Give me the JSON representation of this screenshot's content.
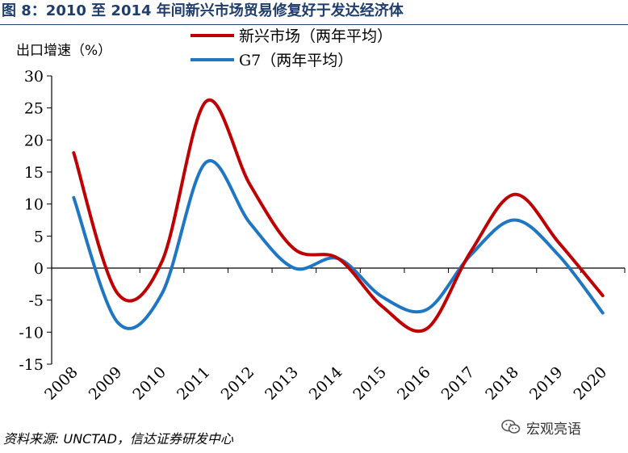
{
  "title": "图 8：2010 至 2014 年间新兴市场贸易修复好于发达经济体",
  "unit_label": "出口增速（%）",
  "source": "资料来源: UNCTAD，信达证券研发中心",
  "watermark": {
    "text": "宏观亮语",
    "icon": "wechat-icon"
  },
  "chart_data": {
    "type": "line",
    "categories": [
      "2008",
      "2009",
      "2010",
      "2011",
      "2012",
      "2013",
      "2014",
      "2015",
      "2016",
      "2017",
      "2018",
      "2019",
      "2020"
    ],
    "ylim": [
      -15,
      30
    ],
    "yticks": [
      30,
      25,
      20,
      15,
      10,
      5,
      0,
      -5,
      -10,
      -15
    ],
    "legend_position": "top-center",
    "grid": false,
    "smooth": true,
    "series": [
      {
        "name": "新兴市场（两年平均）",
        "color": "#c00000",
        "values": [
          18,
          -4,
          1,
          26,
          13,
          3,
          1.5,
          -6,
          -9.5,
          2.5,
          11.5,
          4,
          -4.3
        ]
      },
      {
        "name": "G7（两年平均）",
        "color": "#1f77c4",
        "values": [
          11,
          -8.5,
          -4,
          16.5,
          7,
          0,
          1.5,
          -4.5,
          -6.5,
          2,
          7.5,
          2,
          -7
        ]
      }
    ]
  }
}
